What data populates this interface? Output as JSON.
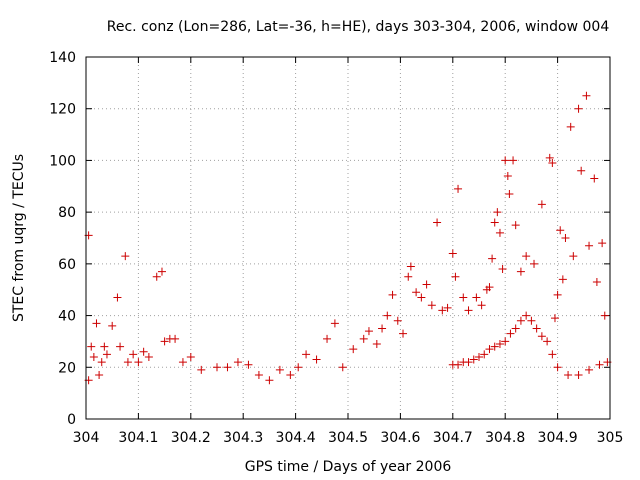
{
  "chart_data": {
    "type": "scatter",
    "title": "Rec. conz (Lon=286, Lat=-36, h=HE), days 303-304, 2006, window 004",
    "xlabel": "GPS time / Days of year 2006",
    "ylabel": "STEC from uqrg / TECUs",
    "xlim": [
      304,
      305
    ],
    "ylim": [
      0,
      140
    ],
    "x_ticks": [
      "304",
      "304.1",
      "304.2",
      "304.3",
      "304.4",
      "304.5",
      "304.6",
      "304.7",
      "304.8",
      "304.9",
      "305"
    ],
    "y_ticks": [
      "0",
      "20",
      "40",
      "60",
      "80",
      "100",
      "120",
      "140"
    ],
    "grid": true,
    "legend": "none",
    "colors": {
      "points": "#cc0000",
      "grid": "#a0a0a0",
      "axis": "#000000"
    },
    "marker": "plus",
    "series": [
      {
        "points": [
          [
            304.005,
            71
          ],
          [
            304.005,
            15
          ],
          [
            304.01,
            28
          ],
          [
            304.015,
            24
          ],
          [
            304.02,
            37
          ],
          [
            304.025,
            17
          ],
          [
            304.03,
            22
          ],
          [
            304.035,
            28
          ],
          [
            304.04,
            25
          ],
          [
            304.05,
            36
          ],
          [
            304.06,
            47
          ],
          [
            304.065,
            28
          ],
          [
            304.075,
            63
          ],
          [
            304.08,
            22
          ],
          [
            304.09,
            25
          ],
          [
            304.1,
            22
          ],
          [
            304.11,
            26
          ],
          [
            304.12,
            24
          ],
          [
            304.135,
            55
          ],
          [
            304.145,
            57
          ],
          [
            304.15,
            30
          ],
          [
            304.16,
            31
          ],
          [
            304.17,
            31
          ],
          [
            304.185,
            22
          ],
          [
            304.2,
            24
          ],
          [
            304.22,
            19
          ],
          [
            304.25,
            20
          ],
          [
            304.27,
            20
          ],
          [
            304.29,
            22
          ],
          [
            304.31,
            21
          ],
          [
            304.33,
            17
          ],
          [
            304.35,
            15
          ],
          [
            304.37,
            19
          ],
          [
            304.39,
            17
          ],
          [
            304.405,
            20
          ],
          [
            304.42,
            25
          ],
          [
            304.44,
            23
          ],
          [
            304.46,
            31
          ],
          [
            304.475,
            37
          ],
          [
            304.49,
            20
          ],
          [
            304.51,
            27
          ],
          [
            304.53,
            31
          ],
          [
            304.54,
            34
          ],
          [
            304.555,
            29
          ],
          [
            304.565,
            35
          ],
          [
            304.575,
            40
          ],
          [
            304.585,
            48
          ],
          [
            304.595,
            38
          ],
          [
            304.605,
            33
          ],
          [
            304.615,
            55
          ],
          [
            304.62,
            59
          ],
          [
            304.63,
            49
          ],
          [
            304.64,
            47
          ],
          [
            304.65,
            52
          ],
          [
            304.66,
            44
          ],
          [
            304.67,
            76
          ],
          [
            304.68,
            42
          ],
          [
            304.69,
            43
          ],
          [
            304.7,
            64
          ],
          [
            304.705,
            55
          ],
          [
            304.71,
            89
          ],
          [
            304.72,
            47
          ],
          [
            304.73,
            42
          ],
          [
            304.745,
            47
          ],
          [
            304.755,
            44
          ],
          [
            304.765,
            50
          ],
          [
            304.77,
            51
          ],
          [
            304.775,
            62
          ],
          [
            304.78,
            76
          ],
          [
            304.785,
            80
          ],
          [
            304.79,
            72
          ],
          [
            304.795,
            58
          ],
          [
            304.8,
            100
          ],
          [
            304.805,
            94
          ],
          [
            304.808,
            87
          ],
          [
            304.815,
            100
          ],
          [
            304.82,
            75
          ],
          [
            304.83,
            57
          ],
          [
            304.84,
            63
          ],
          [
            304.855,
            60
          ],
          [
            304.87,
            83
          ],
          [
            304.885,
            101
          ],
          [
            304.89,
            99
          ],
          [
            304.895,
            39
          ],
          [
            304.905,
            73
          ],
          [
            304.915,
            70
          ],
          [
            304.925,
            113
          ],
          [
            304.93,
            63
          ],
          [
            304.94,
            120
          ],
          [
            304.945,
            96
          ],
          [
            304.955,
            125
          ],
          [
            304.96,
            67
          ],
          [
            304.97,
            93
          ],
          [
            304.975,
            53
          ],
          [
            304.985,
            68
          ],
          [
            304.99,
            40
          ],
          [
            304.9,
            48
          ],
          [
            304.91,
            54
          ],
          [
            304.88,
            30
          ],
          [
            304.89,
            25
          ],
          [
            304.9,
            20
          ],
          [
            304.92,
            17
          ],
          [
            304.94,
            17
          ],
          [
            304.96,
            19
          ],
          [
            304.98,
            21
          ],
          [
            304.995,
            22
          ],
          [
            304.87,
            32
          ],
          [
            304.86,
            35
          ],
          [
            304.85,
            38
          ],
          [
            304.84,
            40
          ],
          [
            304.83,
            38
          ],
          [
            304.82,
            35
          ],
          [
            304.81,
            33
          ],
          [
            304.8,
            30
          ],
          [
            304.79,
            29
          ],
          [
            304.78,
            28
          ],
          [
            304.77,
            27
          ],
          [
            304.76,
            25
          ],
          [
            304.75,
            24
          ],
          [
            304.74,
            23
          ],
          [
            304.73,
            22
          ],
          [
            304.72,
            22
          ],
          [
            304.71,
            21
          ],
          [
            304.7,
            21
          ]
        ]
      }
    ]
  }
}
